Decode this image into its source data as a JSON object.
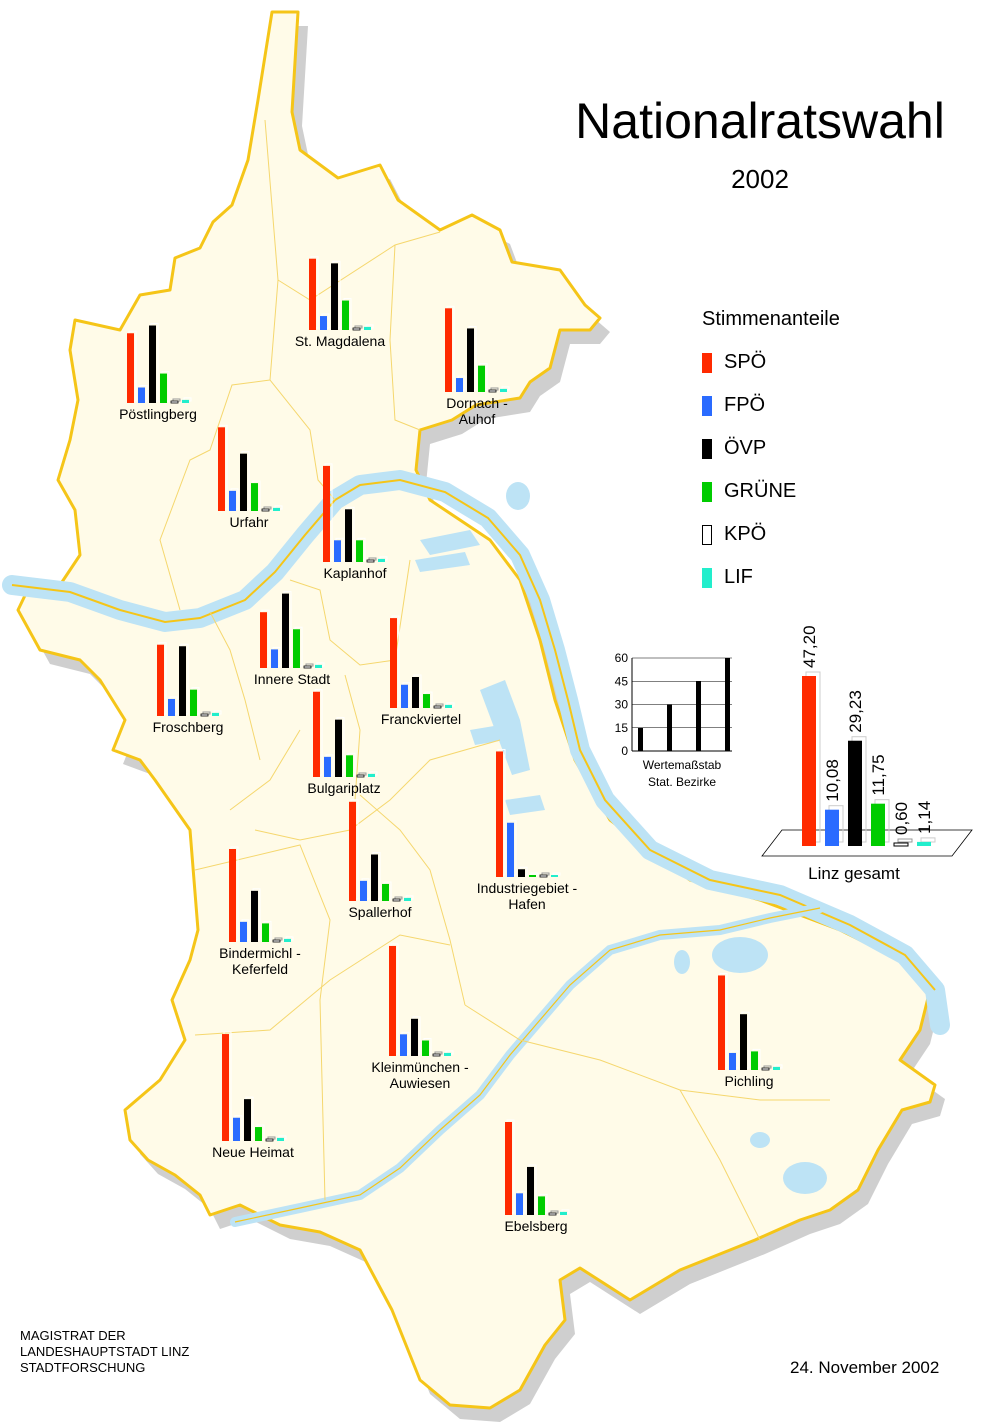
{
  "title": "Nationalratswahl",
  "year": "2002",
  "legend": {
    "title": "Stimmenanteile",
    "items": [
      {
        "key": "spoe",
        "label": "SPÖ",
        "color": "#ff2a00"
      },
      {
        "key": "fpoe",
        "label": "FPÖ",
        "color": "#2a6bff"
      },
      {
        "key": "oevp",
        "label": "ÖVP",
        "color": "#000000"
      },
      {
        "key": "gruene",
        "label": "GRÜNE",
        "color": "#00cc00"
      },
      {
        "key": "kpoe",
        "label": "KPÖ",
        "color": "#ffffff"
      },
      {
        "key": "lif",
        "label": "LIF",
        "color": "#22eecc"
      }
    ]
  },
  "scale": {
    "ticks": [
      "60",
      "45",
      "30",
      "15",
      "0"
    ],
    "values": [
      15,
      30,
      45,
      60
    ],
    "label_line1": "Wertemaßstab",
    "label_line2": "Stat. Bezirke"
  },
  "total": {
    "label": "Linz gesamt",
    "values": [
      {
        "party": "SPÖ",
        "value": 47.2,
        "label": "47,20"
      },
      {
        "party": "FPÖ",
        "value": 10.08,
        "label": "10,08"
      },
      {
        "party": "ÖVP",
        "value": 29.23,
        "label": "29,23"
      },
      {
        "party": "GRÜNE",
        "value": 11.75,
        "label": "11,75"
      },
      {
        "party": "KPÖ",
        "value": 0.6,
        "label": "0,60"
      },
      {
        "party": "LIF",
        "value": 1.14,
        "label": "1,14"
      }
    ]
  },
  "districts": [
    {
      "name": "St. Magdalena",
      "values": [
        46,
        9,
        43,
        19,
        1,
        2
      ]
    },
    {
      "name": "Pöstlingberg",
      "values": [
        45,
        10,
        50,
        19,
        1,
        2
      ]
    },
    {
      "name": "Dornach - Auhof",
      "values": [
        54,
        9,
        41,
        17,
        1,
        2
      ]
    },
    {
      "name": "Urfahr",
      "values": [
        54,
        13,
        37,
        18,
        1,
        2
      ]
    },
    {
      "name": "Kaplanhof",
      "values": [
        62,
        14,
        34,
        14,
        1,
        2
      ]
    },
    {
      "name": "Innere Stadt",
      "values": [
        36,
        12,
        48,
        25,
        1,
        2
      ]
    },
    {
      "name": "Froschberg",
      "values": [
        46,
        11,
        45,
        17,
        1,
        2
      ]
    },
    {
      "name": "Franckviertel",
      "values": [
        58,
        15,
        20,
        9,
        1,
        2
      ]
    },
    {
      "name": "Bulgariplatz",
      "values": [
        55,
        13,
        37,
        14,
        1,
        2
      ]
    },
    {
      "name": "Spallerhof",
      "values": [
        64,
        13,
        30,
        11,
        1,
        2
      ]
    },
    {
      "name": "Industriegebiet - Hafen",
      "values": [
        81,
        35,
        5,
        0,
        0,
        0
      ]
    },
    {
      "name": "Bindermichl - Keferfeld",
      "values": [
        60,
        13,
        33,
        12,
        1,
        2
      ]
    },
    {
      "name": "Kleinmünchen - Auwiesen",
      "values": [
        71,
        14,
        24,
        10,
        1,
        2
      ]
    },
    {
      "name": "Pichling",
      "values": [
        61,
        11,
        36,
        12,
        1,
        2
      ]
    },
    {
      "name": "Neue Heimat",
      "values": [
        69,
        15,
        27,
        9,
        1,
        2
      ]
    },
    {
      "name": "Ebelsberg",
      "values": [
        60,
        14,
        31,
        12,
        1,
        2
      ]
    }
  ],
  "footer": {
    "org_line1": "MAGISTRAT  DER",
    "org_line2": "LANDESHAUPTSTADT  LINZ",
    "org_line3": "STADTFORSCHUNG",
    "date": "24. November 2002"
  }
}
